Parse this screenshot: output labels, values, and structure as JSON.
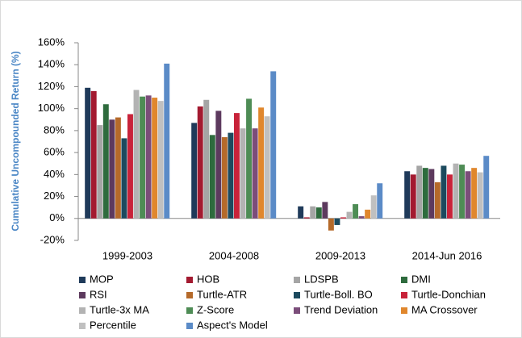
{
  "chart_data": {
    "type": "bar",
    "y_label": "Cumulative Uncompounded Return (%)",
    "categories": [
      "1999-2003",
      "2004-2008",
      "2009-2013",
      "2014-Jun 2016"
    ],
    "ylim": [
      -20,
      160
    ],
    "yticks": [
      {
        "value": -20,
        "label": "-20%"
      },
      {
        "value": 0,
        "label": "0%"
      },
      {
        "value": 20,
        "label": "20%"
      },
      {
        "value": 40,
        "label": "40%"
      },
      {
        "value": 60,
        "label": "60%"
      },
      {
        "value": 80,
        "label": "80%"
      },
      {
        "value": 100,
        "label": "100%"
      },
      {
        "value": 120,
        "label": "120%"
      },
      {
        "value": 140,
        "label": "140%"
      },
      {
        "value": 160,
        "label": "160%"
      }
    ],
    "legend": "bottom",
    "series": [
      {
        "name": "MOP",
        "color": "#1f3a5a",
        "values": [
          119,
          87,
          11,
          43
        ]
      },
      {
        "name": "HOB",
        "color": "#a31a30",
        "values": [
          116,
          102,
          1,
          40
        ]
      },
      {
        "name": "LDSPB",
        "color": "#a5a5a5",
        "values": [
          85,
          108,
          11,
          48
        ]
      },
      {
        "name": "DMI",
        "color": "#2e6b3d",
        "values": [
          104,
          76,
          10,
          46
        ]
      },
      {
        "name": "RSI",
        "color": "#5d3a5e",
        "values": [
          90,
          98,
          15,
          45
        ]
      },
      {
        "name": "Turtle-ATR",
        "color": "#b56a2a",
        "values": [
          92,
          74,
          -11,
          33
        ]
      },
      {
        "name": "Turtle-Boll. BO",
        "color": "#1c4a5e",
        "values": [
          73,
          78,
          -6,
          48
        ]
      },
      {
        "name": "Turtle-Donchian",
        "color": "#c8233a",
        "values": [
          95,
          96,
          1,
          40
        ]
      },
      {
        "name": "Turtle-3x MA",
        "color": "#b3b3b3",
        "values": [
          117,
          82,
          6,
          50
        ]
      },
      {
        "name": "Z-Score",
        "color": "#4e8c55",
        "values": [
          111,
          109,
          13,
          49
        ]
      },
      {
        "name": "Trend Deviation",
        "color": "#7b4d7a",
        "values": [
          112,
          82,
          2,
          43
        ]
      },
      {
        "name": "MA Crossover",
        "color": "#e0872d",
        "values": [
          110,
          101,
          8,
          46
        ]
      },
      {
        "name": "Percentile",
        "color": "#c0c0c0",
        "values": [
          107,
          93,
          21,
          42
        ]
      },
      {
        "name": "Aspect's Model",
        "color": "#5b8bc7",
        "values": [
          141,
          134,
          32,
          57
        ]
      }
    ]
  }
}
